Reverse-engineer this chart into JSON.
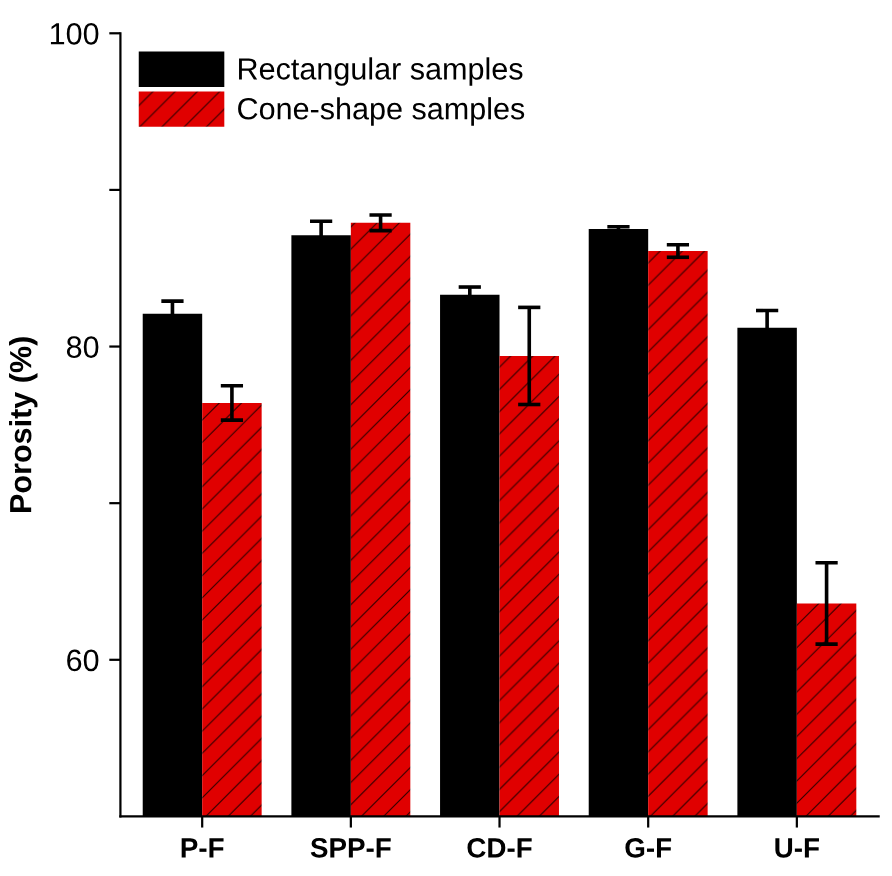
{
  "chart_data": {
    "type": "bar",
    "ylabel": "Porosity (%)",
    "categories": [
      "P-F",
      "SPP-F",
      "CD-F",
      "G-F",
      "U-F"
    ],
    "series": [
      {
        "name": "Rectangular samples",
        "color": "#000000",
        "values": [
          82.1,
          87.1,
          83.3,
          87.5,
          81.2
        ],
        "errors": [
          0.8,
          0.9,
          0.5,
          0.15,
          1.1
        ]
      },
      {
        "name": "Cone-shape samples",
        "color": "#e00000",
        "values": [
          76.4,
          87.9,
          79.4,
          86.1,
          63.6
        ],
        "errors": [
          1.1,
          0.5,
          3.1,
          0.4,
          2.6
        ]
      }
    ],
    "ylim": [
      50,
      100
    ],
    "yticks": [
      60,
      {
        "value": 70,
        "label": null
      },
      80,
      {
        "value": 90,
        "label": null
      },
      100
    ],
    "grid": false,
    "legend": "top left"
  }
}
